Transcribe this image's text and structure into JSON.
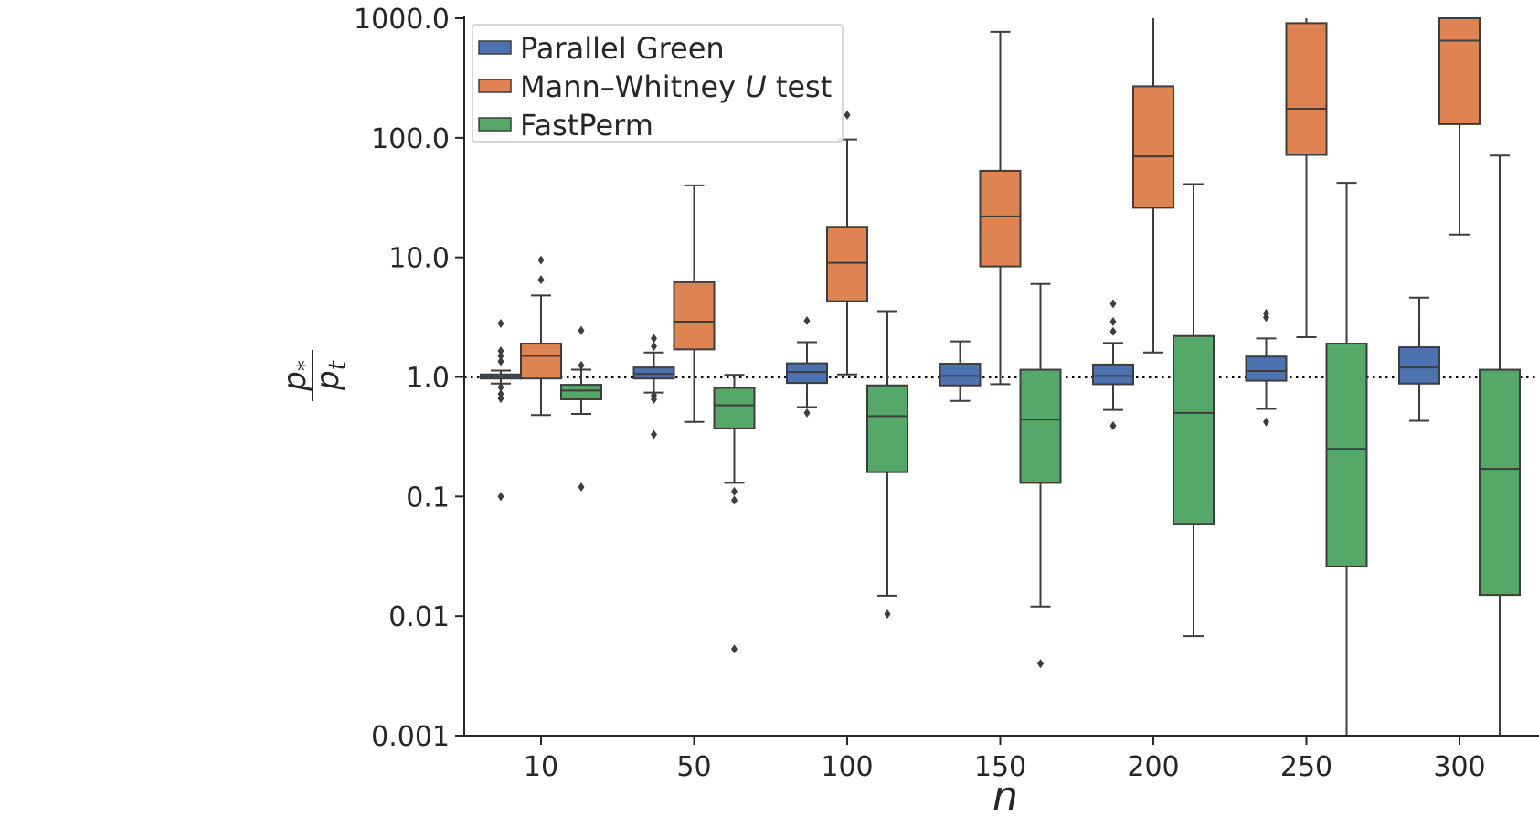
{
  "chart_data": {
    "type": "box",
    "title": "",
    "xlabel": "n",
    "ylabel": {
      "numerator": "p*",
      "denominator": "p_t"
    },
    "categories": [
      "10",
      "50",
      "100",
      "150",
      "200",
      "250",
      "300"
    ],
    "yscale": "log",
    "ylim": [
      0.001,
      1000
    ],
    "yticks": [
      "0.001",
      "0.01",
      "0.1",
      "1.0",
      "10.0",
      "100.0",
      "1000.0"
    ],
    "reference_line": {
      "y": 1.0,
      "style": "dotted",
      "color": "#000000"
    },
    "legend": {
      "placement": "top-left",
      "entries": [
        "Parallel Green",
        "Mann–Whitney U test",
        "FastPerm"
      ]
    },
    "grid": false,
    "series": [
      {
        "name": "Parallel Green",
        "color": "#4c72b0",
        "boxes": [
          {
            "whisker_low": 0.88,
            "q1": 0.97,
            "median": 1.01,
            "q3": 1.05,
            "whisker_high": 1.13,
            "outliers": [
              2.8,
              1.65,
              1.5,
              1.35,
              0.82,
              0.72,
              0.66,
              0.1
            ]
          },
          {
            "whisker_low": 0.74,
            "q1": 0.97,
            "median": 1.06,
            "q3": 1.2,
            "whisker_high": 1.6,
            "outliers": [
              2.1,
              1.8,
              0.7,
              0.65,
              0.33
            ]
          },
          {
            "whisker_low": 0.56,
            "q1": 0.89,
            "median": 1.1,
            "q3": 1.3,
            "whisker_high": 1.95,
            "outliers": [
              2.95,
              0.5
            ]
          },
          {
            "whisker_low": 0.63,
            "q1": 0.85,
            "median": 1.02,
            "q3": 1.29,
            "whisker_high": 1.98,
            "outliers": []
          },
          {
            "whisker_low": 0.53,
            "q1": 0.87,
            "median": 1.02,
            "q3": 1.27,
            "whisker_high": 1.92,
            "outliers": [
              4.1,
              2.9,
              2.4,
              0.39
            ]
          },
          {
            "whisker_low": 0.54,
            "q1": 0.93,
            "median": 1.12,
            "q3": 1.48,
            "whisker_high": 2.1,
            "outliers": [
              3.4,
              3.15,
              0.42
            ]
          },
          {
            "whisker_low": 0.43,
            "q1": 0.88,
            "median": 1.2,
            "q3": 1.77,
            "whisker_high": 4.6,
            "outliers": []
          }
        ]
      },
      {
        "name": "Mann–Whitney U test",
        "color": "#dd8452",
        "boxes": [
          {
            "whisker_low": 0.48,
            "q1": 0.97,
            "median": 1.5,
            "q3": 1.9,
            "whisker_high": 4.8,
            "outliers": [
              9.5,
              6.5
            ]
          },
          {
            "whisker_low": 0.42,
            "q1": 1.7,
            "median": 2.9,
            "q3": 6.2,
            "whisker_high": 40,
            "outliers": []
          },
          {
            "whisker_low": 1.05,
            "q1": 4.3,
            "median": 9.0,
            "q3": 18,
            "whisker_high": 97,
            "outliers": [
              155
            ]
          },
          {
            "whisker_low": 0.87,
            "q1": 8.4,
            "median": 22,
            "q3": 53,
            "whisker_high": 770,
            "outliers": []
          },
          {
            "whisker_low": 1.6,
            "q1": 26,
            "median": 70,
            "q3": 270,
            "whisker_high": 1000,
            "outliers": []
          },
          {
            "whisker_low": 2.15,
            "q1": 72,
            "median": 175,
            "q3": 910,
            "whisker_high": 1000,
            "outliers": []
          },
          {
            "whisker_low": 15.5,
            "q1": 130,
            "median": 650,
            "q3": 1000,
            "whisker_high": 1000,
            "outliers": []
          }
        ]
      },
      {
        "name": "FastPerm",
        "color": "#55a868",
        "boxes": [
          {
            "whisker_low": 0.49,
            "q1": 0.65,
            "median": 0.77,
            "q3": 0.86,
            "whisker_high": 1.15,
            "outliers": [
              2.45,
              1.25,
              0.12
            ]
          },
          {
            "whisker_low": 0.13,
            "q1": 0.37,
            "median": 0.58,
            "q3": 0.81,
            "whisker_high": 1.04,
            "outliers": [
              0.11,
              0.093,
              0.0053
            ]
          },
          {
            "whisker_low": 0.0148,
            "q1": 0.16,
            "median": 0.47,
            "q3": 0.85,
            "whisker_high": 3.55,
            "outliers": [
              0.0104
            ]
          },
          {
            "whisker_low": 0.012,
            "q1": 0.13,
            "median": 0.44,
            "q3": 1.15,
            "whisker_high": 6.0,
            "outliers": [
              0.004
            ]
          },
          {
            "whisker_low": 0.0068,
            "q1": 0.059,
            "median": 0.5,
            "q3": 2.2,
            "whisker_high": 41,
            "outliers": []
          },
          {
            "whisker_low": 0.001,
            "q1": 0.026,
            "median": 0.25,
            "q3": 1.9,
            "whisker_high": 42,
            "outliers": []
          },
          {
            "whisker_low": 0.001,
            "q1": 0.015,
            "median": 0.17,
            "q3": 1.15,
            "whisker_high": 71,
            "outliers": []
          }
        ]
      }
    ]
  }
}
